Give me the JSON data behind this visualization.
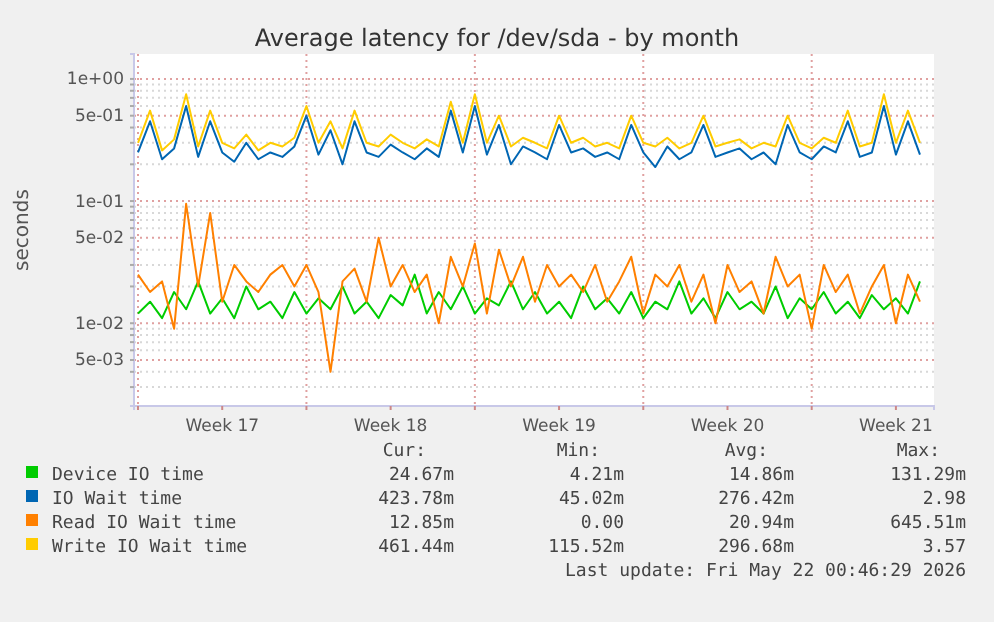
{
  "chart_data": {
    "type": "line",
    "title": "Average latency for /dev/sda - by month",
    "ylabel": "seconds",
    "log": true,
    "grid": true,
    "legend": "bottom",
    "x": [
      "2026-04-19T00:00",
      "2026-04-19T12:00",
      "2026-04-20T00:00",
      "2026-04-20T12:00",
      "2026-04-21T00:00",
      "2026-04-21T12:00",
      "2026-04-22T00:00",
      "2026-04-22T12:00",
      "2026-04-23T00:00",
      "2026-04-23T12:00",
      "2026-04-24T00:00",
      "2026-04-24T12:00",
      "2026-04-25T00:00",
      "2026-04-25T12:00",
      "2026-04-26T00:00",
      "2026-04-26T12:00",
      "2026-04-27T00:00",
      "2026-04-27T12:00",
      "2026-04-28T00:00",
      "2026-04-28T12:00",
      "2026-04-29T00:00",
      "2026-04-29T12:00",
      "2026-04-30T00:00",
      "2026-04-30T12:00",
      "2026-05-01T00:00",
      "2026-05-01T12:00",
      "2026-05-02T00:00",
      "2026-05-02T12:00",
      "2026-05-03T00:00",
      "2026-05-03T12:00",
      "2026-05-04T00:00",
      "2026-05-04T12:00",
      "2026-05-05T00:00",
      "2026-05-05T12:00",
      "2026-05-06T00:00",
      "2026-05-06T12:00",
      "2026-05-07T00:00",
      "2026-05-07T12:00",
      "2026-05-08T00:00",
      "2026-05-08T12:00",
      "2026-05-09T00:00",
      "2026-05-09T12:00",
      "2026-05-10T00:00",
      "2026-05-10T12:00",
      "2026-05-11T00:00",
      "2026-05-11T12:00",
      "2026-05-12T00:00",
      "2026-05-12T12:00",
      "2026-05-13T00:00",
      "2026-05-13T12:00",
      "2026-05-14T00:00",
      "2026-05-14T12:00",
      "2026-05-15T00:00",
      "2026-05-15T12:00",
      "2026-05-16T00:00",
      "2026-05-16T12:00",
      "2026-05-17T00:00",
      "2026-05-17T12:00",
      "2026-05-18T00:00",
      "2026-05-18T12:00",
      "2026-05-19T00:00",
      "2026-05-19T12:00",
      "2026-05-20T00:00",
      "2026-05-20T12:00",
      "2026-05-21T00:00",
      "2026-05-21T12:00"
    ],
    "xlim": [
      "2026-04-18T20:00",
      "2026-05-22T02:00"
    ],
    "xticks": [
      {
        "value": "2026-04-19T00:00",
        "label": null
      },
      {
        "value": "2026-04-22T12:00",
        "label": "Week 17"
      },
      {
        "value": "2026-04-26T00:00",
        "label": null
      },
      {
        "value": "2026-04-29T12:00",
        "label": "Week 18"
      },
      {
        "value": "2026-05-03T00:00",
        "label": null
      },
      {
        "value": "2026-05-06T12:00",
        "label": "Week 19"
      },
      {
        "value": "2026-05-10T00:00",
        "label": null
      },
      {
        "value": "2026-05-13T12:00",
        "label": "Week 20"
      },
      {
        "value": "2026-05-17T00:00",
        "label": null
      },
      {
        "value": "2026-05-20T12:00",
        "label": "Week 21"
      }
    ],
    "ylim": [
      0.0021,
      1.6
    ],
    "yticks": [
      {
        "value": 0.003,
        "label": null
      },
      {
        "value": 0.004,
        "label": null
      },
      {
        "value": 0.005,
        "label": "5e-03"
      },
      {
        "value": 0.006,
        "label": null
      },
      {
        "value": 0.007,
        "label": null
      },
      {
        "value": 0.008,
        "label": null
      },
      {
        "value": 0.009,
        "label": null
      },
      {
        "value": 0.01,
        "label": "1e-02"
      },
      {
        "value": 0.02,
        "label": null
      },
      {
        "value": 0.03,
        "label": null
      },
      {
        "value": 0.04,
        "label": null
      },
      {
        "value": 0.05,
        "label": "5e-02"
      },
      {
        "value": 0.06,
        "label": null
      },
      {
        "value": 0.07,
        "label": null
      },
      {
        "value": 0.08,
        "label": null
      },
      {
        "value": 0.09,
        "label": null
      },
      {
        "value": 0.1,
        "label": "1e-01"
      },
      {
        "value": 0.2,
        "label": null
      },
      {
        "value": 0.3,
        "label": null
      },
      {
        "value": 0.4,
        "label": null
      },
      {
        "value": 0.5,
        "label": "5e-01"
      },
      {
        "value": 0.6,
        "label": null
      },
      {
        "value": 0.7,
        "label": null
      },
      {
        "value": 0.8,
        "label": null
      },
      {
        "value": 0.9,
        "label": null
      },
      {
        "value": 1,
        "label": "1e+00"
      }
    ],
    "series": [
      {
        "name": "Device IO time",
        "color": "#00cc00",
        "values": [
          0.012,
          0.015,
          0.011,
          0.018,
          0.013,
          0.022,
          0.012,
          0.016,
          0.011,
          0.02,
          0.013,
          0.015,
          0.011,
          0.018,
          0.012,
          0.016,
          0.013,
          0.02,
          0.012,
          0.015,
          0.011,
          0.017,
          0.014,
          0.025,
          0.012,
          0.018,
          0.013,
          0.02,
          0.012,
          0.016,
          0.014,
          0.022,
          0.013,
          0.018,
          0.012,
          0.015,
          0.011,
          0.02,
          0.013,
          0.016,
          0.012,
          0.018,
          0.011,
          0.015,
          0.013,
          0.022,
          0.012,
          0.016,
          0.011,
          0.018,
          0.013,
          0.015,
          0.012,
          0.02,
          0.011,
          0.016,
          0.013,
          0.018,
          0.012,
          0.015,
          0.011,
          0.017,
          0.013,
          0.016,
          0.012,
          0.022
        ]
      },
      {
        "name": "IO Wait time",
        "color": "#0066b3",
        "values": [
          0.25,
          0.45,
          0.22,
          0.27,
          0.6,
          0.23,
          0.45,
          0.25,
          0.21,
          0.3,
          0.22,
          0.25,
          0.23,
          0.28,
          0.5,
          0.24,
          0.38,
          0.2,
          0.45,
          0.25,
          0.23,
          0.29,
          0.25,
          0.22,
          0.27,
          0.23,
          0.55,
          0.25,
          0.6,
          0.24,
          0.42,
          0.2,
          0.28,
          0.25,
          0.22,
          0.42,
          0.25,
          0.27,
          0.23,
          0.25,
          0.22,
          0.42,
          0.25,
          0.19,
          0.28,
          0.22,
          0.25,
          0.42,
          0.23,
          0.25,
          0.27,
          0.22,
          0.25,
          0.2,
          0.42,
          0.25,
          0.22,
          0.28,
          0.25,
          0.45,
          0.23,
          0.25,
          0.6,
          0.24,
          0.45,
          0.24
        ]
      },
      {
        "name": "Read IO Wait time",
        "color": "#ff8000",
        "values": [
          0.025,
          0.018,
          0.022,
          0.009,
          0.095,
          0.02,
          0.08,
          0.015,
          0.03,
          0.022,
          0.018,
          0.025,
          0.03,
          0.02,
          0.03,
          0.018,
          0.004,
          0.022,
          0.028,
          0.015,
          0.05,
          0.02,
          0.03,
          0.018,
          0.025,
          0.01,
          0.035,
          0.02,
          0.045,
          0.012,
          0.04,
          0.02,
          0.035,
          0.015,
          0.03,
          0.02,
          0.025,
          0.018,
          0.03,
          0.015,
          0.022,
          0.035,
          0.012,
          0.025,
          0.02,
          0.03,
          0.015,
          0.025,
          0.01,
          0.03,
          0.018,
          0.022,
          0.012,
          0.035,
          0.02,
          0.025,
          0.009,
          0.03,
          0.018,
          0.025,
          0.012,
          0.02,
          0.03,
          0.01,
          0.025,
          0.015
        ]
      },
      {
        "name": "Write IO Wait time",
        "color": "#ffcc00",
        "values": [
          0.3,
          0.55,
          0.26,
          0.32,
          0.75,
          0.28,
          0.55,
          0.3,
          0.27,
          0.35,
          0.26,
          0.3,
          0.28,
          0.33,
          0.6,
          0.3,
          0.45,
          0.27,
          0.55,
          0.3,
          0.28,
          0.35,
          0.3,
          0.27,
          0.32,
          0.28,
          0.65,
          0.3,
          0.75,
          0.3,
          0.5,
          0.28,
          0.33,
          0.3,
          0.27,
          0.5,
          0.3,
          0.33,
          0.28,
          0.3,
          0.27,
          0.5,
          0.3,
          0.28,
          0.33,
          0.27,
          0.3,
          0.5,
          0.28,
          0.3,
          0.32,
          0.27,
          0.3,
          0.28,
          0.5,
          0.3,
          0.27,
          0.33,
          0.3,
          0.55,
          0.28,
          0.3,
          0.75,
          0.3,
          0.55,
          0.3
        ]
      }
    ],
    "annotations": [
      "Cur:",
      "Min:",
      "Avg:",
      "Max:",
      "24.67m",
      "4.21m",
      "14.86m",
      "131.29m",
      "423.78m",
      "45.02m",
      "276.42m",
      "2.98",
      "12.85m",
      "0.00",
      "20.94m",
      "645.51m",
      "461.44m",
      "115.52m",
      "296.68m",
      "3.57",
      "Last update: Fri May 22 00:46:29 2026"
    ]
  }
}
